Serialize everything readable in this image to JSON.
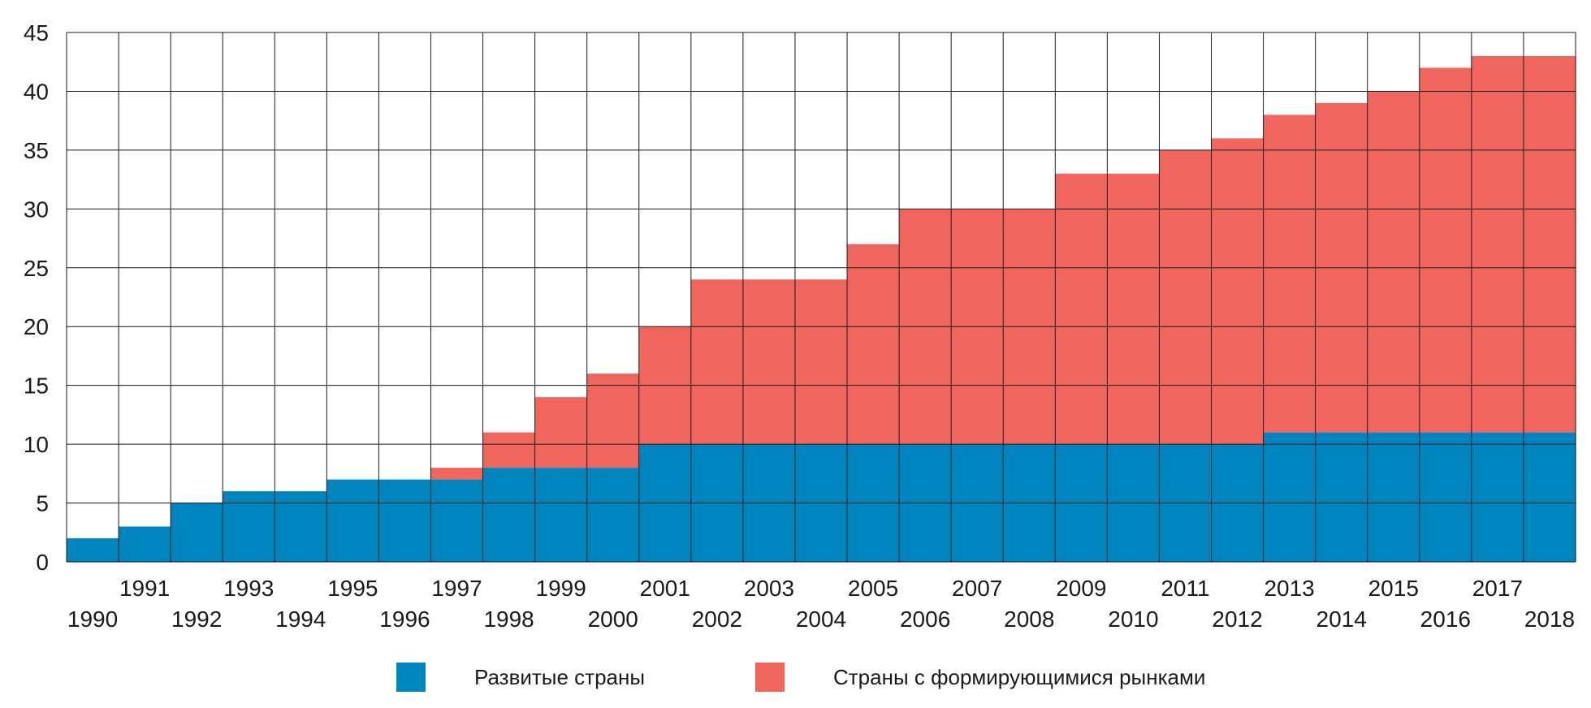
{
  "chart_data": {
    "type": "area",
    "x": [
      1990,
      1991,
      1992,
      1993,
      1994,
      1995,
      1996,
      1997,
      1998,
      1999,
      2000,
      2001,
      2002,
      2003,
      2004,
      2005,
      2006,
      2007,
      2008,
      2009,
      2010,
      2011,
      2012,
      2013,
      2014,
      2015,
      2016,
      2017,
      2018
    ],
    "x_tick_labels": [
      "1990",
      "1991",
      "1992",
      "1993",
      "1994",
      "1995",
      "1996",
      "1997",
      "1998",
      "1999",
      "2000",
      "2001",
      "2002",
      "2003",
      "2004",
      "2005",
      "2006",
      "2007",
      "2008",
      "2009",
      "2010",
      "2011",
      "2012",
      "2013",
      "2014",
      "2015",
      "2016",
      "2017",
      "2018"
    ],
    "series": [
      {
        "name": "Развитые страны",
        "color": "#0085be",
        "values": [
          2,
          3,
          5,
          6,
          6,
          7,
          7,
          7,
          8,
          8,
          8,
          10,
          10,
          10,
          10,
          10,
          10,
          10,
          10,
          10,
          10,
          10,
          10,
          11,
          11,
          11,
          11,
          11,
          11
        ]
      },
      {
        "name": "Страны с формирующимися рынками",
        "color": "#f0665f",
        "values": [
          0,
          0,
          0,
          0,
          0,
          0,
          0,
          1,
          3,
          6,
          8,
          10,
          14,
          14,
          14,
          17,
          20,
          20,
          20,
          23,
          23,
          25,
          26,
          27,
          28,
          29,
          31,
          32,
          32
        ]
      }
    ],
    "stacked": true,
    "step": true,
    "title": "",
    "xlabel": "",
    "ylabel": "",
    "ylim": [
      0,
      45
    ],
    "y_ticks": [
      0,
      5,
      10,
      15,
      20,
      25,
      30,
      35,
      40,
      45
    ],
    "grid": true,
    "legend_position": "bottom"
  },
  "legend": {
    "items": [
      {
        "label": "Развитые страны",
        "color": "#0085be"
      },
      {
        "label": "Страны с формирующимися рынками",
        "color": "#f0665f"
      }
    ]
  }
}
